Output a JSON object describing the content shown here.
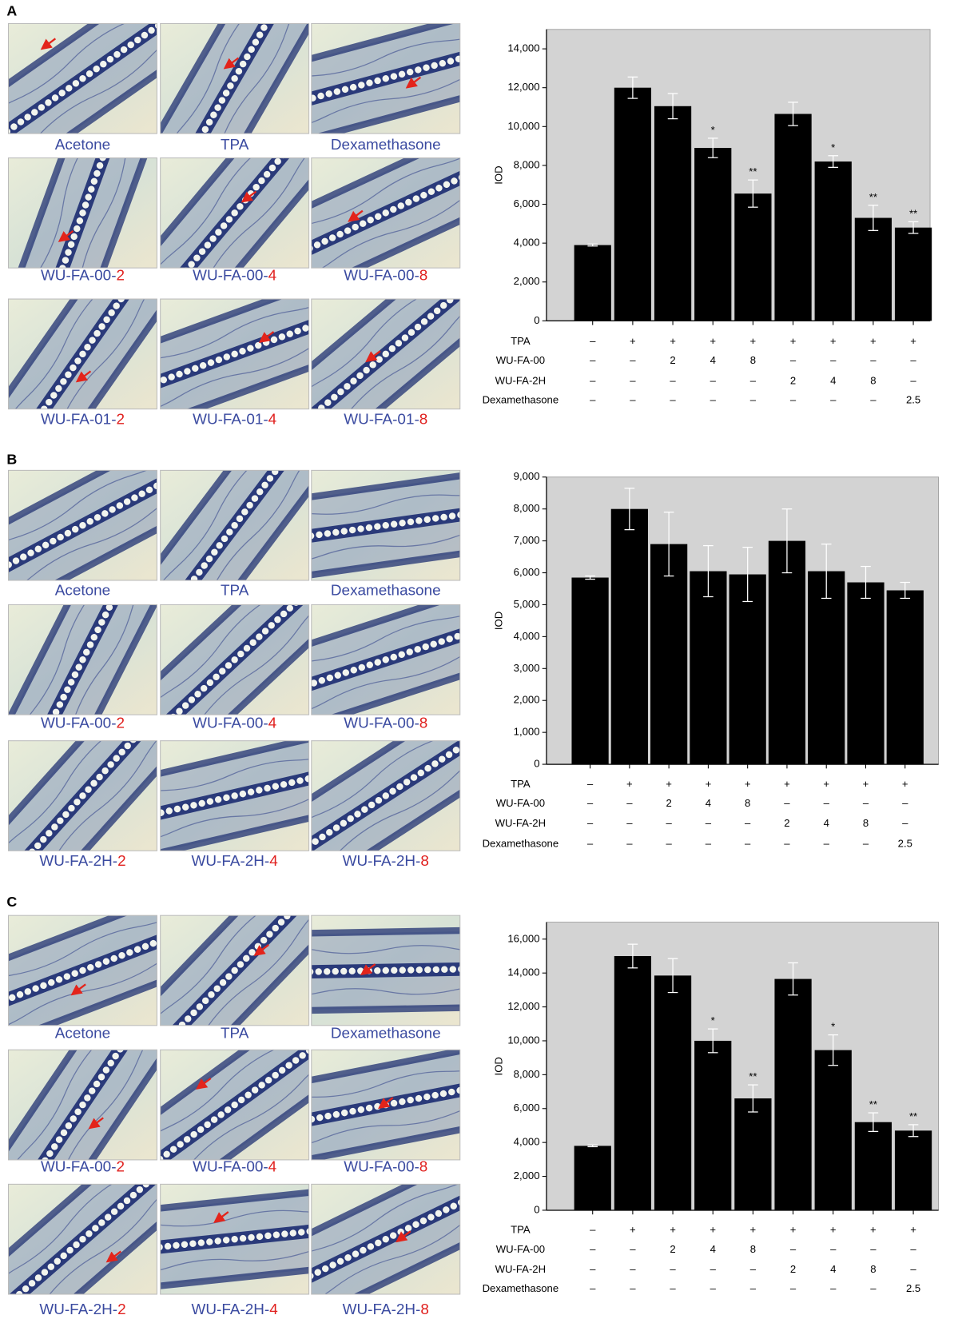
{
  "panels": [
    {
      "letter": "A",
      "images": [
        {
          "base": "Acetone"
        },
        {
          "base": "TPA"
        },
        {
          "base": "Dexamethasone"
        },
        {
          "base": "WU-FA-00-",
          "dose": "2"
        },
        {
          "base": "WU-FA-00-",
          "dose": "4"
        },
        {
          "base": "WU-FA-00-",
          "dose": "8"
        },
        {
          "base": "WU-FA-01-",
          "dose": "2"
        },
        {
          "base": "WU-FA-01-",
          "dose": "4"
        },
        {
          "base": "WU-FA-01-",
          "dose": "8"
        }
      ]
    },
    {
      "letter": "B",
      "images": [
        {
          "base": "Acetone"
        },
        {
          "base": "TPA"
        },
        {
          "base": "Dexamethasone"
        },
        {
          "base": "WU-FA-00-",
          "dose": "2"
        },
        {
          "base": "WU-FA-00-",
          "dose": "4"
        },
        {
          "base": "WU-FA-00-",
          "dose": "8"
        },
        {
          "base": "WU-FA-2H-",
          "dose": "2"
        },
        {
          "base": "WU-FA-2H-",
          "dose": "4"
        },
        {
          "base": "WU-FA-2H-",
          "dose": "8"
        }
      ]
    },
    {
      "letter": "C",
      "images": [
        {
          "base": "Acetone"
        },
        {
          "base": "TPA"
        },
        {
          "base": "Dexamethasone"
        },
        {
          "base": "WU-FA-00-",
          "dose": "2"
        },
        {
          "base": "WU-FA-00-",
          "dose": "4"
        },
        {
          "base": "WU-FA-00-",
          "dose": "8"
        },
        {
          "base": "WU-FA-2H-",
          "dose": "2"
        },
        {
          "base": "WU-FA-2H-",
          "dose": "4"
        },
        {
          "base": "WU-FA-2H-",
          "dose": "8"
        }
      ]
    }
  ],
  "chart_data": [
    {
      "type": "bar",
      "y_label": "IOD",
      "color": "#000000",
      "background": "#d3d3d3",
      "ylim": [
        0,
        15000
      ],
      "yticks": [
        0,
        {
          "value": 2000,
          "label": "2,000"
        },
        {
          "value": 4000,
          "label": "4,000"
        },
        {
          "value": 6000,
          "label": "6,000"
        },
        {
          "value": 8000,
          "label": "8,000"
        },
        {
          "value": 10000,
          "label": "10,000"
        },
        {
          "value": 12000,
          "label": "12,000"
        },
        {
          "value": 14000,
          "label": "14,000"
        }
      ],
      "values": [
        3900,
        12000,
        11050,
        8900,
        6550,
        10650,
        8200,
        5300,
        4800
      ],
      "errors": [
        50,
        550,
        650,
        500,
        700,
        600,
        300,
        650,
        300
      ],
      "significance": [
        null,
        null,
        null,
        "*",
        "**",
        null,
        "*",
        "**",
        "**"
      ],
      "treatments": [
        {
          "name": "TPA",
          "values": [
            "–",
            "+",
            "+",
            "+",
            "+",
            "+",
            "+",
            "+",
            "+"
          ]
        },
        {
          "name": "WU-FA-00",
          "values": [
            "–",
            "–",
            "2",
            "4",
            "8",
            "–",
            "–",
            "–",
            "–"
          ]
        },
        {
          "name": "WU-FA-2H",
          "values": [
            "–",
            "–",
            "–",
            "–",
            "–",
            "2",
            "4",
            "8",
            "–"
          ]
        },
        {
          "name": "Dexamethasone",
          "values": [
            "–",
            "–",
            "–",
            "–",
            "–",
            "–",
            "–",
            "–",
            "2.5"
          ]
        }
      ]
    },
    {
      "type": "bar",
      "y_label": "IOD",
      "color": "#000000",
      "background": "#d3d3d3",
      "ylim": [
        0,
        9000
      ],
      "yticks": [
        0,
        {
          "value": 1000,
          "label": "1,000"
        },
        {
          "value": 2000,
          "label": "2,000"
        },
        {
          "value": 3000,
          "label": "3,000"
        },
        {
          "value": 4000,
          "label": "4,000"
        },
        {
          "value": 5000,
          "label": "5,000"
        },
        {
          "value": 6000,
          "label": "6,000"
        },
        {
          "value": 7000,
          "label": "7,000"
        },
        {
          "value": 8000,
          "label": "8,000"
        },
        {
          "value": 9000,
          "label": "9,000"
        }
      ],
      "values": [
        5850,
        8000,
        6900,
        6050,
        5950,
        7000,
        6050,
        5700,
        5450
      ],
      "errors": [
        50,
        650,
        1000,
        800,
        850,
        1000,
        850,
        500,
        250
      ],
      "significance": [
        null,
        null,
        null,
        null,
        null,
        null,
        null,
        null,
        null
      ],
      "treatments": [
        {
          "name": "TPA",
          "values": [
            "–",
            "+",
            "+",
            "+",
            "+",
            "+",
            "+",
            "+",
            "+"
          ]
        },
        {
          "name": "WU-FA-00",
          "values": [
            "–",
            "–",
            "2",
            "4",
            "8",
            "–",
            "–",
            "–",
            "–"
          ]
        },
        {
          "name": "WU-FA-2H",
          "values": [
            "–",
            "–",
            "–",
            "–",
            "–",
            "2",
            "4",
            "8",
            "–"
          ]
        },
        {
          "name": "Dexamethasone",
          "values": [
            "–",
            "–",
            "–",
            "–",
            "–",
            "–",
            "–",
            "–",
            "2.5"
          ]
        }
      ]
    },
    {
      "type": "bar",
      "y_label": "IOD",
      "color": "#000000",
      "background": "#d3d3d3",
      "ylim": [
        0,
        17000
      ],
      "yticks": [
        0,
        {
          "value": 2000,
          "label": "2,000"
        },
        {
          "value": 4000,
          "label": "4,000"
        },
        {
          "value": 6000,
          "label": "6,000"
        },
        {
          "value": 8000,
          "label": "8,000"
        },
        {
          "value": 10000,
          "label": "10,000"
        },
        {
          "value": 12000,
          "label": "12,000"
        },
        {
          "value": 14000,
          "label": "14,000"
        },
        {
          "value": 16000,
          "label": "16,000"
        }
      ],
      "values": [
        3800,
        15000,
        13850,
        10000,
        6600,
        13650,
        9450,
        5200,
        4700
      ],
      "errors": [
        50,
        700,
        1000,
        700,
        800,
        950,
        900,
        550,
        350
      ],
      "significance": [
        null,
        null,
        null,
        "*",
        "**",
        null,
        "*",
        "**",
        "**"
      ],
      "treatments": [
        {
          "name": "TPA",
          "values": [
            "–",
            "+",
            "+",
            "+",
            "+",
            "+",
            "+",
            "+",
            "+"
          ]
        },
        {
          "name": "WU-FA-00",
          "values": [
            "–",
            "–",
            "2",
            "4",
            "8",
            "–",
            "–",
            "–",
            "–"
          ]
        },
        {
          "name": "WU-FA-2H",
          "values": [
            "–",
            "–",
            "–",
            "–",
            "–",
            "2",
            "4",
            "8",
            "–"
          ]
        },
        {
          "name": "Dexamethasone",
          "values": [
            "–",
            "–",
            "–",
            "–",
            "–",
            "–",
            "–",
            "–",
            "2.5"
          ]
        }
      ]
    }
  ]
}
